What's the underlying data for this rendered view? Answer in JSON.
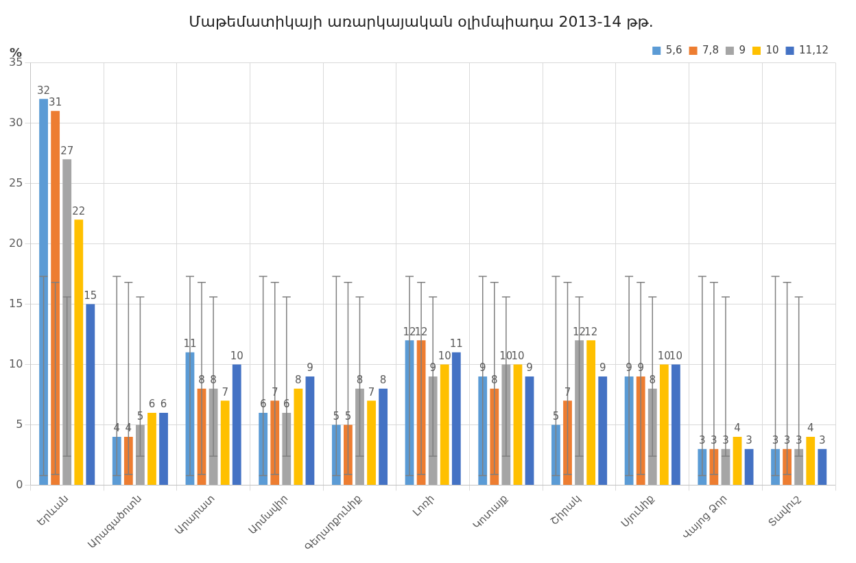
{
  "chart_data": {
    "type": "bar",
    "title": "Մաթեմատիկայի առարկայական օլիմպիադա 2013-14 թթ.",
    "ylabel": "%",
    "categories": [
      "Երևան",
      "Արագածոտն",
      "Արարատ",
      "Արմավիր",
      "Գեղարքունիք",
      "Լոռի",
      "Կոտայք",
      "Շիրակ",
      "Սյունիք",
      "Վայոց Ձոր",
      "Տավուշ"
    ],
    "series": [
      {
        "name": "5,6",
        "color": "#5b9bd5",
        "values": [
          32,
          4,
          11,
          6,
          5,
          12,
          9,
          5,
          9,
          3,
          3
        ],
        "errors": [
          [
            0.8,
            17.3
          ],
          [
            0.8,
            17.3
          ],
          [
            0.8,
            17.3
          ],
          [
            0.8,
            17.3
          ],
          [
            0.8,
            17.3
          ],
          [
            0.8,
            17.3
          ],
          [
            0.8,
            17.3
          ],
          [
            0.8,
            17.3
          ],
          [
            0.8,
            17.3
          ],
          [
            0.8,
            17.3
          ],
          [
            0.8,
            17.3
          ]
        ]
      },
      {
        "name": "7,8",
        "color": "#ed7d31",
        "values": [
          31,
          4,
          8,
          7,
          5,
          12,
          8,
          7,
          9,
          3,
          3
        ],
        "errors": [
          [
            0.9,
            16.8
          ],
          [
            0.9,
            16.8
          ],
          [
            0.9,
            16.8
          ],
          [
            0.9,
            16.8
          ],
          [
            0.9,
            16.8
          ],
          [
            0.9,
            16.8
          ],
          [
            0.9,
            16.8
          ],
          [
            0.9,
            16.8
          ],
          [
            0.9,
            16.8
          ],
          [
            0.9,
            16.8
          ],
          [
            0.9,
            16.8
          ]
        ]
      },
      {
        "name": "9",
        "color": "#a5a5a5",
        "values": [
          27,
          5,
          8,
          6,
          8,
          9,
          10,
          12,
          8,
          3,
          3
        ],
        "errors": [
          [
            2.4,
            15.6
          ],
          [
            2.4,
            15.6
          ],
          [
            2.4,
            15.6
          ],
          [
            2.4,
            15.6
          ],
          [
            2.4,
            15.6
          ],
          [
            2.4,
            15.6
          ],
          [
            2.4,
            15.6
          ],
          [
            2.4,
            15.6
          ],
          [
            2.4,
            15.6
          ],
          [
            2.4,
            15.6
          ],
          [
            2.4,
            15.6
          ]
        ]
      },
      {
        "name": "10",
        "color": "#ffc000",
        "values": [
          22,
          6,
          7,
          8,
          7,
          10,
          10,
          12,
          10,
          4,
          4
        ]
      },
      {
        "name": "11,12",
        "color": "#4472c4",
        "values": [
          15,
          6,
          10,
          9,
          8,
          11,
          9,
          9,
          10,
          3,
          3
        ]
      }
    ],
    "ylim": [
      0,
      35
    ],
    "yticks": [
      0,
      5,
      10,
      15,
      20,
      25,
      30,
      35
    ],
    "grid": true,
    "legend": "top right",
    "data_labels": true
  }
}
